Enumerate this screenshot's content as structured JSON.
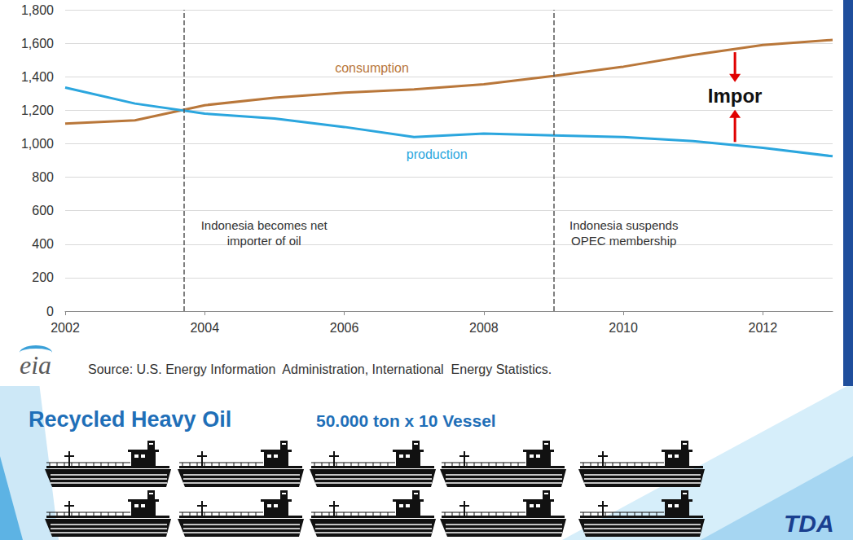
{
  "chart_data": {
    "type": "line",
    "x": [
      2002,
      2003,
      2004,
      2005,
      2006,
      2007,
      2008,
      2009,
      2010,
      2011,
      2012,
      2013
    ],
    "series": [
      {
        "name": "consumption",
        "color": "#b9773a",
        "values": [
          1120,
          1140,
          1230,
          1275,
          1305,
          1325,
          1355,
          1405,
          1460,
          1530,
          1590,
          1620
        ]
      },
      {
        "name": "production",
        "color": "#2ba6de",
        "values": [
          1335,
          1240,
          1180,
          1150,
          1100,
          1040,
          1060,
          1050,
          1040,
          1015,
          975,
          925
        ]
      }
    ],
    "xlim": [
      2002,
      2013
    ],
    "xticks": [
      2002,
      2004,
      2006,
      2008,
      2010,
      2012
    ],
    "ylim": [
      0,
      1800
    ],
    "yticks": [
      0,
      200,
      400,
      600,
      800,
      {
        "value": 1000,
        "label": "1,000"
      },
      {
        "value": 1200,
        "label": "1,200"
      },
      {
        "value": 1400,
        "label": "1,400"
      },
      {
        "value": 1600,
        "label": "1,600"
      },
      {
        "value": 1800,
        "label": "1,800"
      }
    ],
    "grid": true,
    "annotations": [
      {
        "x": 2003.7,
        "text": "Indonesia becomes net\nimporter of oil"
      },
      {
        "x": 2009.0,
        "text": "Indonesia suspends\nOPEC membership"
      },
      {
        "x": 2011.6,
        "y": 1285,
        "text": "Impor"
      }
    ],
    "source_logo": "eia",
    "source": "Source: U.S. Energy Information  Administration, International  Energy Statistics."
  },
  "slide": {
    "heading": "Recycled Heavy Oil",
    "subheading": "50.000 ton x 10 Vessel",
    "vessel_count": 10,
    "logo": "TDA"
  }
}
